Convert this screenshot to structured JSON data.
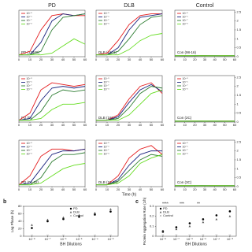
{
  "chart_data": [
    {
      "type": "line",
      "title": "PD",
      "annotation": "PD (13469)",
      "x": [
        0,
        10,
        20,
        30,
        40,
        50,
        60
      ],
      "xlim": [
        0,
        60
      ],
      "xticks": [
        0,
        10,
        20,
        30,
        40,
        50,
        60
      ],
      "ylim": [
        0,
        2.6
      ],
      "series": [
        {
          "name": "10⁻⁵",
          "color": "#e41a1c",
          "values": [
            0.1,
            0.3,
            1.5,
            2.3,
            2.4,
            2.3,
            2.3
          ]
        },
        {
          "name": "10⁻⁶",
          "color": "#1a237e",
          "values": [
            0.1,
            0.1,
            0.8,
            2.0,
            2.4,
            2.3,
            2.4
          ]
        },
        {
          "name": "10⁻⁷",
          "color": "#2e7d32",
          "values": [
            0.1,
            0.1,
            0.3,
            1.5,
            2.2,
            2.3,
            2.4
          ]
        },
        {
          "name": "10⁻⁸",
          "color": "#66dd22",
          "values": [
            0.1,
            0.1,
            0.1,
            0.2,
            0.6,
            1.0,
            0.7
          ]
        }
      ]
    },
    {
      "type": "line",
      "title": "DLB",
      "annotation": "DLB (1801)",
      "x": [
        0,
        10,
        20,
        30,
        40,
        50,
        60
      ],
      "xlim": [
        0,
        60
      ],
      "xticks": [
        0,
        10,
        20,
        30,
        40,
        50,
        60
      ],
      "ylim": [
        0,
        2.6
      ],
      "series": [
        {
          "name": "10⁻⁵",
          "color": "#e41a1c",
          "values": [
            0.1,
            0.2,
            0.9,
            1.8,
            2.3,
            2.4,
            2.4
          ]
        },
        {
          "name": "10⁻⁶",
          "color": "#1a237e",
          "values": [
            0.1,
            0.1,
            0.5,
            1.5,
            2.2,
            2.3,
            2.4
          ]
        },
        {
          "name": "10⁻⁷",
          "color": "#2e7d32",
          "values": [
            0.1,
            0.1,
            0.3,
            1.0,
            1.8,
            2.2,
            2.3
          ]
        },
        {
          "name": "10⁻⁸",
          "color": "#66dd22",
          "values": [
            0.1,
            0.1,
            0.1,
            0.4,
            0.9,
            1.2,
            1.3
          ]
        }
      ]
    },
    {
      "type": "line",
      "title": "Control",
      "annotation": "Con (98-16)",
      "x": [
        0,
        10,
        20,
        30,
        40,
        50,
        60
      ],
      "xlim": [
        0,
        60
      ],
      "xticks": [
        0,
        10,
        20,
        30,
        40,
        50,
        60
      ],
      "ylim": [
        0,
        2.6
      ],
      "yticks": [
        0,
        0.5,
        1,
        1.5,
        2,
        2.5
      ],
      "series": [
        {
          "name": "10⁻⁵",
          "color": "#e41a1c",
          "values": [
            0.05,
            0.06,
            0.05,
            0.06,
            0.05,
            0.06,
            0.05
          ]
        },
        {
          "name": "10⁻⁶",
          "color": "#1a237e",
          "values": [
            0.05,
            0.05,
            0.06,
            0.05,
            0.06,
            0.05,
            0.06
          ]
        },
        {
          "name": "10⁻⁷",
          "color": "#2e7d32",
          "values": [
            0.06,
            0.05,
            0.05,
            0.06,
            0.05,
            0.05,
            0.06
          ]
        },
        {
          "name": "10⁻⁸",
          "color": "#66dd22",
          "values": [
            0.05,
            0.06,
            0.06,
            0.05,
            0.05,
            0.06,
            0.05
          ]
        }
      ]
    },
    {
      "type": "line",
      "annotation": "PD (9)",
      "x": [
        0,
        10,
        20,
        30,
        40,
        50,
        60
      ],
      "xlim": [
        0,
        60
      ],
      "xticks": [
        0,
        10,
        20,
        30,
        40,
        50,
        60
      ],
      "ylim": [
        0,
        2.6
      ],
      "series": [
        {
          "name": "10⁻⁵",
          "color": "#e41a1c",
          "values": [
            0.1,
            0.5,
            1.8,
            2.2,
            2.1,
            2.0,
            2.1
          ]
        },
        {
          "name": "10⁻⁶",
          "color": "#1a237e",
          "values": [
            0.1,
            0.2,
            1.2,
            1.9,
            2.0,
            1.9,
            2.0
          ]
        },
        {
          "name": "10⁻⁷",
          "color": "#2e7d32",
          "values": [
            0.1,
            0.1,
            0.6,
            1.5,
            1.8,
            1.7,
            1.8
          ]
        },
        {
          "name": "10⁻⁸",
          "color": "#66dd22",
          "values": [
            0.1,
            0.1,
            0.2,
            0.7,
            1.0,
            1.0,
            1.1
          ]
        }
      ]
    },
    {
      "type": "line",
      "annotation": "DLB (1802)",
      "x": [
        0,
        10,
        20,
        30,
        40,
        50,
        60
      ],
      "xlim": [
        0,
        60
      ],
      "xticks": [
        0,
        10,
        20,
        30,
        40,
        50,
        60
      ],
      "ylim": [
        0,
        2.6
      ],
      "series": [
        {
          "name": "10⁻⁵",
          "color": "#e41a1c",
          "values": [
            0.1,
            0.1,
            0.4,
            1.3,
            2.0,
            2.2,
            1.6
          ]
        },
        {
          "name": "10⁻⁶",
          "color": "#1a237e",
          "values": [
            0.1,
            0.1,
            0.3,
            1.1,
            1.8,
            2.1,
            1.7
          ]
        },
        {
          "name": "10⁻⁷",
          "color": "#2e7d32",
          "values": [
            0.1,
            0.1,
            0.2,
            0.8,
            1.6,
            2.0,
            1.9
          ]
        },
        {
          "name": "10⁻⁸",
          "color": "#66dd22",
          "values": [
            0.1,
            0.1,
            0.1,
            0.4,
            1.0,
            1.6,
            1.8
          ]
        }
      ]
    },
    {
      "type": "line",
      "annotation": "Con (2C)",
      "x": [
        0,
        10,
        20,
        30,
        40,
        50,
        60
      ],
      "xlim": [
        0,
        60
      ],
      "xticks": [
        0,
        10,
        20,
        30,
        40,
        50,
        60
      ],
      "ylim": [
        0,
        2.6
      ],
      "yticks": [
        0,
        0.5,
        1,
        1.5,
        2,
        2.5
      ],
      "series": [
        {
          "name": "10⁻⁵",
          "color": "#e41a1c",
          "values": [
            0.05,
            0.05,
            0.06,
            0.05,
            0.05,
            0.06,
            0.05
          ]
        },
        {
          "name": "10⁻⁶",
          "color": "#1a237e",
          "values": [
            0.05,
            0.06,
            0.05,
            0.05,
            0.06,
            0.05,
            0.05
          ]
        },
        {
          "name": "10⁻⁷",
          "color": "#2e7d32",
          "values": [
            0.06,
            0.05,
            0.05,
            0.06,
            0.05,
            0.05,
            0.06
          ]
        },
        {
          "name": "10⁻⁸",
          "color": "#66dd22",
          "values": [
            0.05,
            0.05,
            0.06,
            0.05,
            0.06,
            0.05,
            0.05
          ]
        }
      ]
    },
    {
      "type": "line",
      "annotation": "PD (06-02)",
      "x": [
        0,
        10,
        20,
        30,
        40,
        50,
        60
      ],
      "xlim": [
        0,
        60
      ],
      "xticks": [
        0,
        10,
        20,
        30,
        40,
        50,
        60
      ],
      "ylim": [
        0,
        2.6
      ],
      "series": [
        {
          "name": "10⁻⁵",
          "color": "#e41a1c",
          "values": [
            0.1,
            0.6,
            1.7,
            2.1,
            2.1,
            2.0,
            2.1
          ]
        },
        {
          "name": "10⁻⁶",
          "color": "#1a237e",
          "values": [
            0.1,
            0.2,
            1.0,
            1.8,
            2.0,
            2.0,
            2.1
          ]
        },
        {
          "name": "10⁻⁷",
          "color": "#2e7d32",
          "values": [
            0.1,
            0.1,
            0.5,
            1.4,
            1.8,
            1.8,
            1.9
          ]
        },
        {
          "name": "10⁻⁸",
          "color": "#66dd22",
          "values": [
            0.1,
            0.1,
            0.2,
            0.6,
            1.0,
            1.2,
            1.3
          ]
        }
      ]
    },
    {
      "type": "line",
      "annotation": "DLB (21-33)",
      "xlabel": "Time (h)",
      "x": [
        0,
        10,
        20,
        30,
        40,
        50,
        60
      ],
      "xlim": [
        0,
        60
      ],
      "xticks": [
        0,
        10,
        20,
        30,
        40,
        50,
        60
      ],
      "ylim": [
        0,
        2.6
      ],
      "series": [
        {
          "name": "10⁻⁵",
          "color": "#e41a1c",
          "values": [
            0.1,
            0.1,
            0.6,
            1.6,
            2.1,
            2.3,
            1.8
          ]
        },
        {
          "name": "10⁻⁶",
          "color": "#1a237e",
          "values": [
            0.1,
            0.1,
            0.4,
            1.2,
            1.8,
            2.0,
            2.0
          ]
        },
        {
          "name": "10⁻⁷",
          "color": "#2e7d32",
          "values": [
            0.1,
            0.1,
            0.3,
            0.9,
            1.5,
            1.8,
            1.7
          ]
        },
        {
          "name": "10⁻⁸",
          "color": "#66dd22",
          "values": [
            0.1,
            0.1,
            0.2,
            0.6,
            1.3,
            1.6,
            1.8
          ]
        }
      ]
    },
    {
      "type": "line",
      "annotation": "Con (3C)",
      "x": [
        0,
        10,
        20,
        30,
        40,
        50,
        60
      ],
      "xlim": [
        0,
        60
      ],
      "xticks": [
        0,
        10,
        20,
        30,
        40,
        50,
        60
      ],
      "ylim": [
        0,
        2.6
      ],
      "yticks": [
        0,
        0.5,
        1,
        1.5,
        2,
        2.5
      ],
      "series": [
        {
          "name": "10⁻⁵",
          "color": "#e41a1c",
          "values": [
            0.05,
            0.06,
            0.05,
            0.05,
            0.06,
            0.05,
            0.05
          ]
        },
        {
          "name": "10⁻⁶",
          "color": "#1a237e",
          "values": [
            0.05,
            0.05,
            0.05,
            0.06,
            0.05,
            0.05,
            0.06
          ]
        },
        {
          "name": "10⁻⁷",
          "color": "#2e7d32",
          "values": [
            0.06,
            0.05,
            0.06,
            0.05,
            0.05,
            0.06,
            0.05
          ]
        },
        {
          "name": "10⁻⁸",
          "color": "#66dd22",
          "values": [
            0.05,
            0.06,
            0.05,
            0.05,
            0.06,
            0.05,
            0.05
          ]
        }
      ]
    },
    {
      "type": "scatter",
      "label": "b",
      "ylabel": "Lag Phase (h)",
      "xlabel": "BH Dilutions",
      "log_x": true,
      "x": [
        1e-08,
        1e-07,
        1e-06,
        1e-05,
        0.0001,
        0.001
      ],
      "xlim": [
        3e-09,
        0.003
      ],
      "xticks": [
        {
          "value": 1e-08,
          "label": "10⁻⁸"
        },
        {
          "value": 1e-07,
          "label": "10⁻⁷"
        },
        {
          "value": 1e-06,
          "label": "10⁻⁶"
        },
        {
          "value": 1e-05,
          "label": "10⁻⁵"
        },
        {
          "value": 0.0001,
          "label": "10⁻⁴"
        },
        {
          "value": 0.001,
          "label": "10⁻³"
        }
      ],
      "ylim": [
        0,
        80
      ],
      "yticks": [
        0,
        20,
        40,
        60,
        80
      ],
      "series": [
        {
          "name": "PD",
          "color": "#000000",
          "marker": "circle",
          "values": [
            22,
            40,
            46,
            52,
            58,
            66
          ]
        },
        {
          "name": "DLB",
          "color": "#555555",
          "marker": "triangle",
          "values": [
            30,
            44,
            50,
            56,
            62,
            72
          ]
        },
        {
          "name": "Control",
          "color": "#888888",
          "marker": "cross",
          "values": [
            2,
            2,
            2,
            2,
            2,
            2
          ]
        }
      ]
    },
    {
      "type": "scatter",
      "label": "c",
      "ylabel": "Protein Aggregation Rate (1/h)",
      "xlabel": "BH Dilutions",
      "log_x": true,
      "annotations": [
        "****",
        "***",
        "**"
      ],
      "x": [
        1e-08,
        1e-07,
        1e-06,
        1e-05,
        0.0001,
        0.001
      ],
      "xlim": [
        3e-09,
        0.003
      ],
      "xticks": [
        {
          "value": 1e-08,
          "label": "10⁻⁸"
        },
        {
          "value": 1e-07,
          "label": "10⁻⁷"
        },
        {
          "value": 1e-06,
          "label": "10⁻⁶"
        },
        {
          "value": 1e-05,
          "label": "10⁻⁵"
        },
        {
          "value": 0.0001,
          "label": "10⁻⁴"
        },
        {
          "value": 0.001,
          "label": "10⁻³"
        }
      ],
      "ylim": [
        0,
        0.3
      ],
      "yticks": [
        0,
        0.1,
        0.2,
        0.3
      ],
      "series": [
        {
          "name": "PD",
          "color": "#000000",
          "marker": "circle",
          "values": [
            0.05,
            0.09,
            0.13,
            0.17,
            0.21,
            0.25
          ]
        },
        {
          "name": "DLB",
          "color": "#555555",
          "marker": "triangle",
          "values": [
            0.04,
            0.07,
            0.1,
            0.14,
            0.17,
            0.2
          ]
        },
        {
          "name": "Control",
          "color": "#888888",
          "marker": "cross",
          "values": [
            0.01,
            0.01,
            0.01,
            0.01,
            0.01,
            0.01
          ]
        }
      ]
    }
  ]
}
